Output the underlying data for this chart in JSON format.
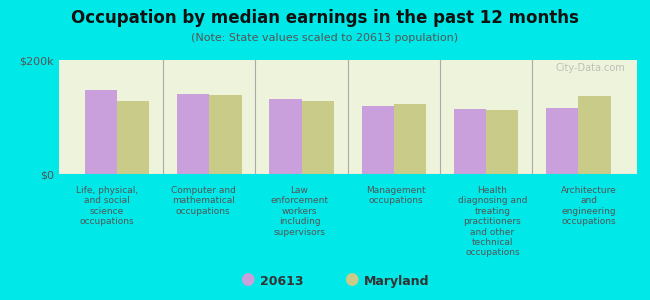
{
  "title": "Occupation by median earnings in the past 12 months",
  "subtitle": "(Note: State values scaled to 20613 population)",
  "background_color": "#00e8e8",
  "plot_bg_color": "#eef3dc",
  "bar_color_20613": "#c9a0dc",
  "bar_color_maryland": "#c8cc88",
  "categories": [
    "Life, physical,\nand social\nscience\noccupations",
    "Computer and\nmathematical\noccupations",
    "Law\nenforcement\nworkers\nincluding\nsupervisors",
    "Management\noccupations",
    "Health\ndiagnosing and\ntreating\npractitioners\nand other\ntechnical\noccupations",
    "Architecture\nand\nengineering\noccupations"
  ],
  "values_20613": [
    148000,
    140000,
    132000,
    120000,
    114000,
    116000
  ],
  "values_maryland": [
    128000,
    138000,
    128000,
    122000,
    112000,
    136000
  ],
  "ylim": [
    0,
    200000
  ],
  "ytick_labels": [
    "$0",
    "$200k"
  ],
  "legend_label_20613": "20613",
  "legend_label_maryland": "Maryland",
  "watermark": "City-Data.com"
}
